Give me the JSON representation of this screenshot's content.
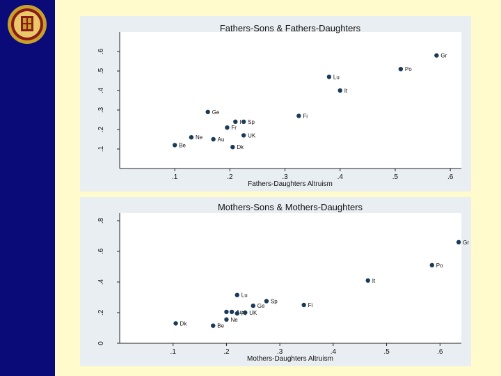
{
  "colors": {
    "sidebar": "#0a0a78",
    "slide_bg": "#fffbcc",
    "panel_bg": "#e9eef2",
    "plot_bg": "#ffffff",
    "marker": "#1a3a57",
    "logo_gold": "#c8a12a",
    "logo_red": "#8b1a1a"
  },
  "logo": {
    "icon": "university-seal-icon"
  },
  "chart_data": [
    {
      "type": "scatter",
      "title": "Fathers-Sons & Fathers-Daughters",
      "xlabel": "Fathers-Daughters Altruism",
      "ylabel": "",
      "xlim": [
        0,
        0.62
      ],
      "ylim": [
        0,
        0.7
      ],
      "xticks": [
        ".1",
        ".2",
        ".3",
        ".4",
        ".5",
        ".6"
      ],
      "yticks": [
        ".1",
        ".2",
        ".3",
        ".4",
        ".5",
        ".6"
      ],
      "grid": false,
      "points": [
        {
          "label": "Gr",
          "x": 0.575,
          "y": 0.58
        },
        {
          "label": "Po",
          "x": 0.51,
          "y": 0.51
        },
        {
          "label": "Lu",
          "x": 0.38,
          "y": 0.47
        },
        {
          "label": "It",
          "x": 0.4,
          "y": 0.4
        },
        {
          "label": "Fi",
          "x": 0.325,
          "y": 0.27
        },
        {
          "label": "Ge",
          "x": 0.16,
          "y": 0.29
        },
        {
          "label": "I",
          "x": 0.21,
          "y": 0.24
        },
        {
          "label": "Sp",
          "x": 0.225,
          "y": 0.24
        },
        {
          "label": "Fr",
          "x": 0.195,
          "y": 0.21
        },
        {
          "label": "UK",
          "x": 0.225,
          "y": 0.17
        },
        {
          "label": "Ne",
          "x": 0.13,
          "y": 0.16
        },
        {
          "label": "Au",
          "x": 0.17,
          "y": 0.15
        },
        {
          "label": "Be",
          "x": 0.1,
          "y": 0.12
        },
        {
          "label": "Dk",
          "x": 0.205,
          "y": 0.11
        }
      ]
    },
    {
      "type": "scatter",
      "title": "Mothers-Sons & Mothers-Daughters",
      "xlabel": "Mothers-Daughters Altruism",
      "ylabel": "",
      "xlim": [
        0,
        0.64
      ],
      "ylim": [
        0,
        0.85
      ],
      "xticks": [
        ".1",
        ".2",
        ".3",
        ".4",
        ".5",
        ".6"
      ],
      "yticks": [
        "0",
        ".2",
        ".4",
        ".6",
        ".8"
      ],
      "grid": false,
      "points": [
        {
          "label": "Gr",
          "x": 0.635,
          "y": 0.66
        },
        {
          "label": "Po",
          "x": 0.585,
          "y": 0.51
        },
        {
          "label": "It",
          "x": 0.465,
          "y": 0.41
        },
        {
          "label": "Lu",
          "x": 0.22,
          "y": 0.315
        },
        {
          "label": "Sp",
          "x": 0.275,
          "y": 0.275
        },
        {
          "label": "Ge",
          "x": 0.25,
          "y": 0.245
        },
        {
          "label": "Fi",
          "x": 0.345,
          "y": 0.25
        },
        {
          "label": "I",
          "x": 0.2,
          "y": 0.205
        },
        {
          "label": "Au",
          "x": 0.21,
          "y": 0.205
        },
        {
          "label": "Fr",
          "x": 0.22,
          "y": 0.195
        },
        {
          "label": "UK",
          "x": 0.235,
          "y": 0.2
        },
        {
          "label": "Ne",
          "x": 0.2,
          "y": 0.155
        },
        {
          "label": "Dk",
          "x": 0.105,
          "y": 0.13
        },
        {
          "label": "Be",
          "x": 0.175,
          "y": 0.115
        }
      ]
    }
  ]
}
